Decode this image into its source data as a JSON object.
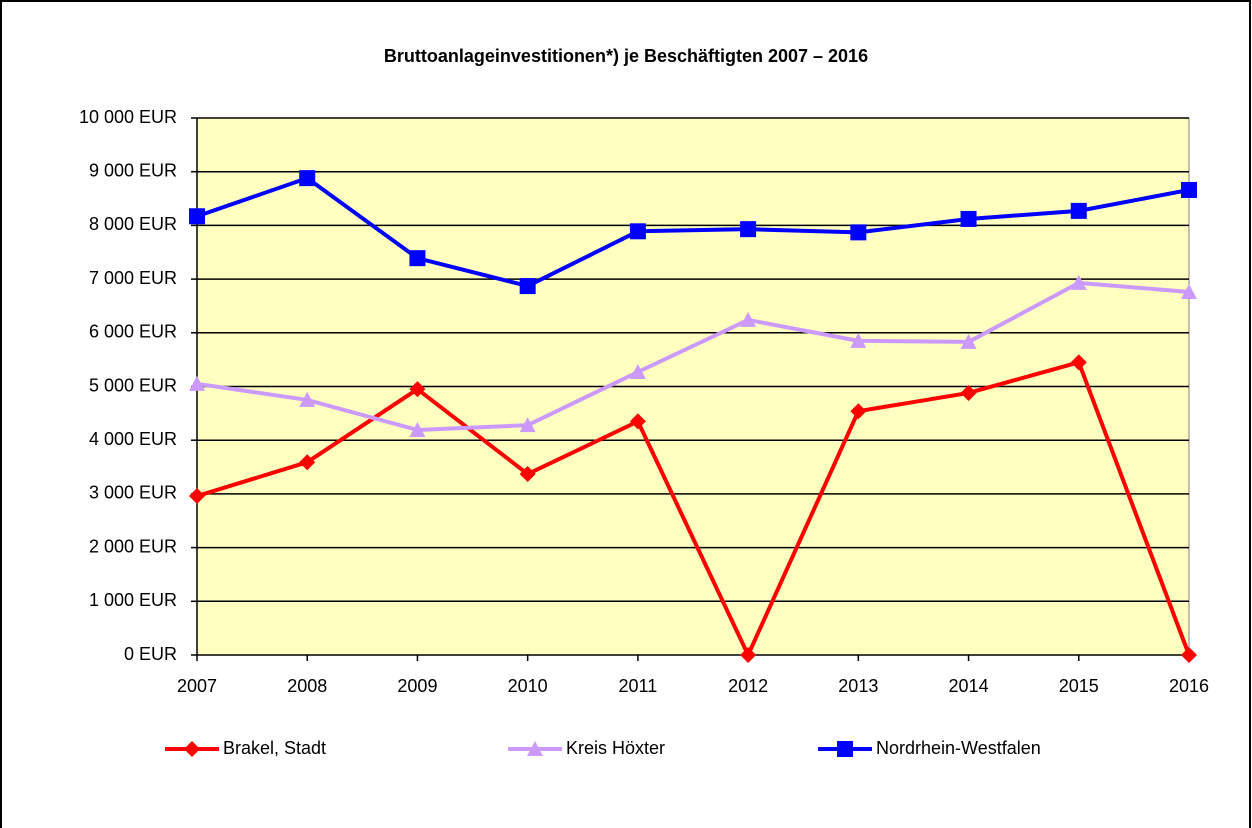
{
  "chart_data": {
    "type": "line",
    "title": "Bruttoanlageinvestitionen*) je Beschäftigten 2007 – 2016",
    "categories": [
      "2007",
      "2008",
      "2009",
      "2010",
      "2011",
      "2012",
      "2013",
      "2014",
      "2015",
      "2016"
    ],
    "series": [
      {
        "name": "Brakel, Stadt",
        "color": "#ff0000",
        "marker": "diamond",
        "values": [
          2960,
          3590,
          4950,
          3370,
          4350,
          0,
          4540,
          4880,
          5450,
          0
        ]
      },
      {
        "name": "Kreis Höxter",
        "color": "#cc99ff",
        "marker": "triangle",
        "values": [
          5050,
          4750,
          4190,
          4280,
          5270,
          6240,
          5850,
          5830,
          6930,
          6760
        ]
      },
      {
        "name": "Nordrhein-Westfalen",
        "color": "#0000ff",
        "marker": "square",
        "values": [
          8170,
          8880,
          7390,
          6870,
          7890,
          7930,
          7870,
          8120,
          8270,
          8660
        ]
      }
    ],
    "ylim": [
      0,
      10000
    ],
    "yticks": [
      {
        "value": 0,
        "label": "0 EUR"
      },
      {
        "value": 1000,
        "label": "1 000 EUR"
      },
      {
        "value": 2000,
        "label": "2 000 EUR"
      },
      {
        "value": 3000,
        "label": "3 000 EUR"
      },
      {
        "value": 4000,
        "label": "4 000 EUR"
      },
      {
        "value": 5000,
        "label": "5 000 EUR"
      },
      {
        "value": 6000,
        "label": "6 000 EUR"
      },
      {
        "value": 7000,
        "label": "7 000 EUR"
      },
      {
        "value": 8000,
        "label": "8 000 EUR"
      },
      {
        "value": 9000,
        "label": "9 000 EUR"
      },
      {
        "value": 10000,
        "label": "10 000 EUR"
      }
    ],
    "grid": true,
    "legend": "bottom",
    "plot_background": "#ffffc0"
  }
}
